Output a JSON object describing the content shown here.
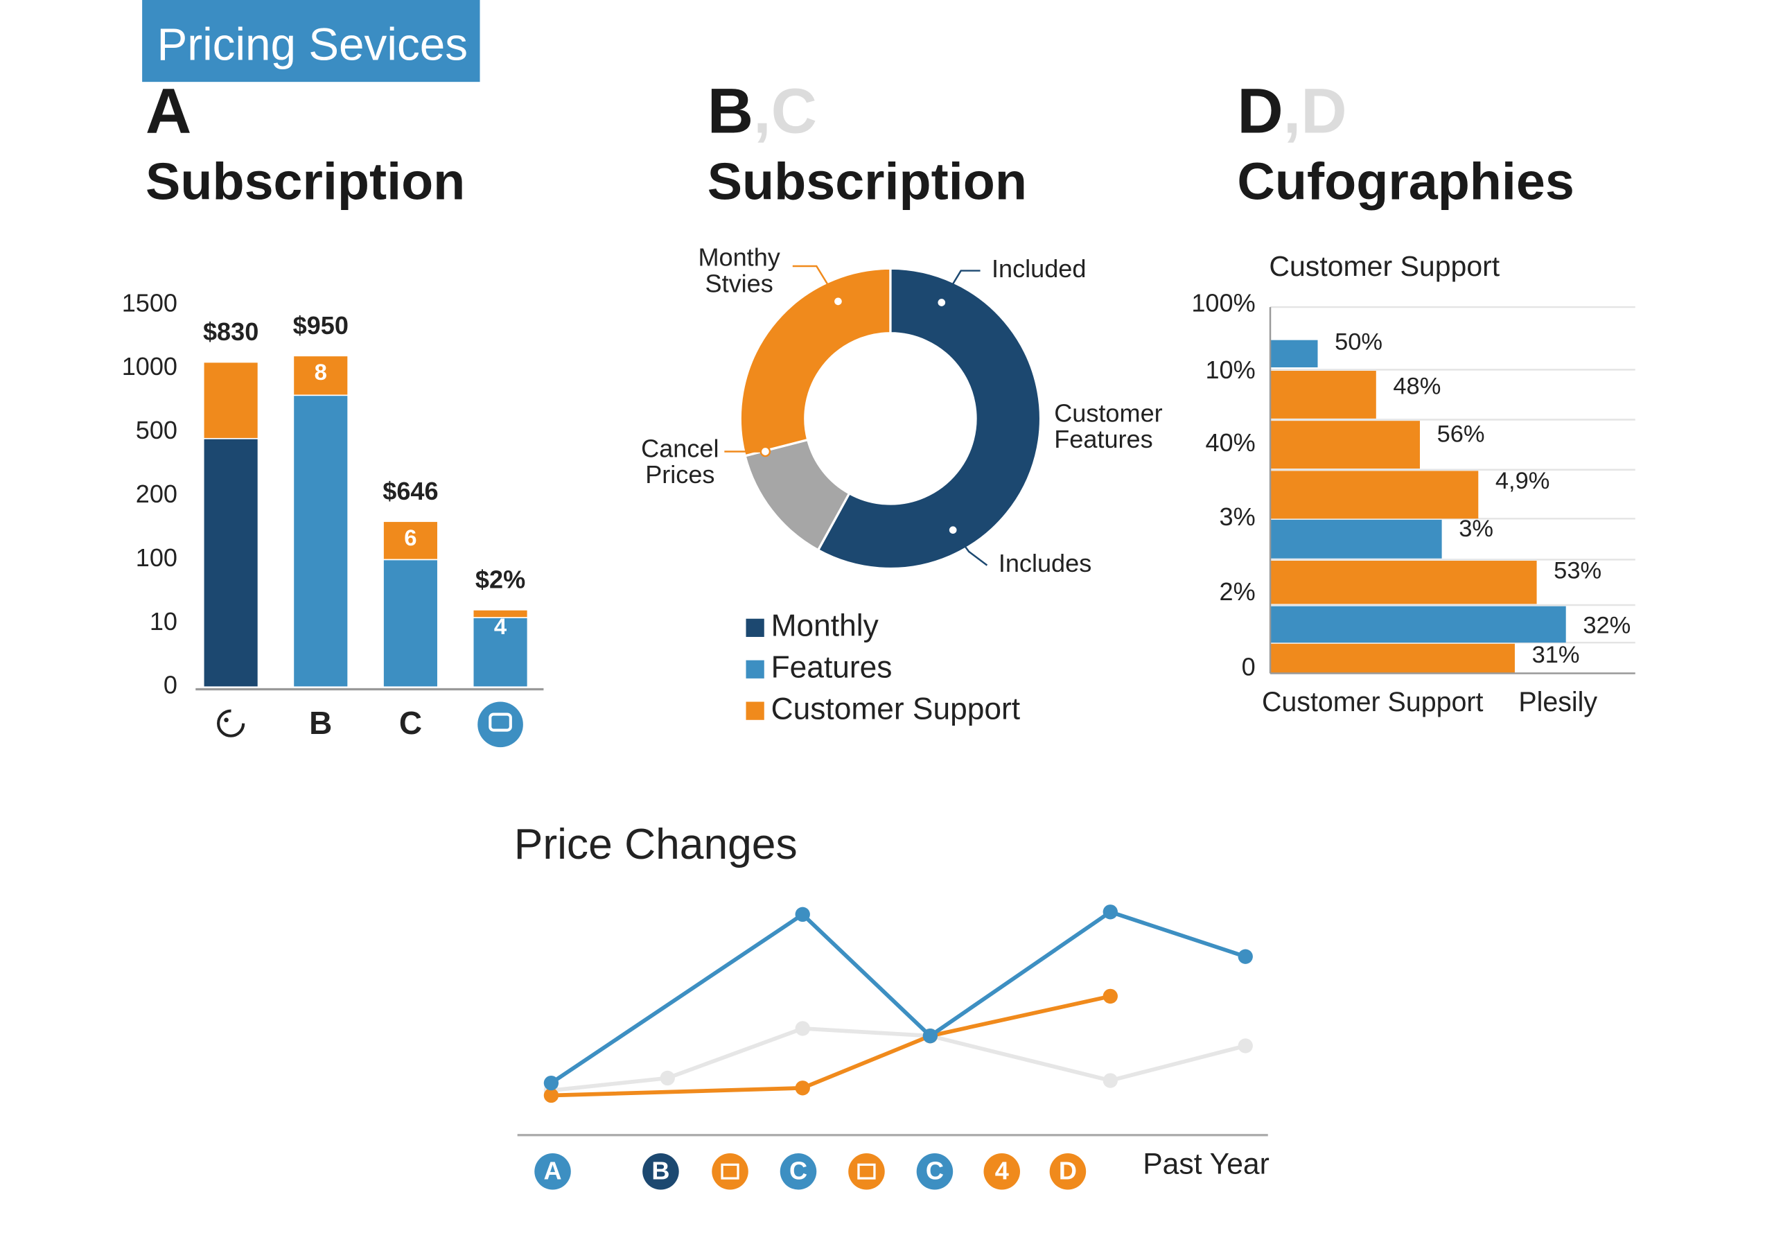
{
  "header": "Pricing Sevices",
  "chart_data": [
    {
      "type": "bar",
      "letter": "A",
      "title": "Subscription",
      "categories": [
        null,
        "B",
        "C",
        null
      ],
      "series": [
        {
          "colors": [
            "#1c4870",
            "#3d8fc2",
            "#3d8fc2",
            "#3d8fc2"
          ],
          "values": [
            470,
            790,
            100,
            18
          ]
        },
        {
          "color": "#f08a1c",
          "values": [
            580,
            310,
            60,
            11
          ]
        }
      ],
      "bar_labels": [
        "$830",
        "$950",
        "$646",
        "$2%"
      ],
      "segment_labels": [
        null,
        "8",
        "6",
        "4"
      ],
      "ylim": [
        0,
        1500
      ],
      "yticks": [
        0,
        10,
        100,
        200,
        500,
        1000,
        1500
      ]
    },
    {
      "type": "donut",
      "letter": "B",
      "letter_ghost": ",C",
      "title": "Subscription",
      "values": [
        58,
        13,
        29
      ],
      "colors": [
        "#1c4870",
        "#a6a6a6",
        "#f08a1c"
      ],
      "annotations": [
        {
          "lines": [
            "Monthy",
            "Stvies"
          ]
        },
        {
          "lines": [
            "Included"
          ]
        },
        {
          "lines": [
            "Customer",
            "Features"
          ]
        },
        {
          "lines": [
            "Includes"
          ]
        },
        {
          "lines": [
            "Cancel",
            "Prices"
          ]
        }
      ],
      "legend": [
        {
          "name": "Monthly",
          "color": "#1c4870"
        },
        {
          "name": "Features",
          "color": "#3d8fc2"
        },
        {
          "name": "Customer Support",
          "color": "#f08a1c"
        }
      ]
    },
    {
      "type": "hbar",
      "letter": "D",
      "letter_ghost": ",D",
      "title": "Cufographies",
      "subtitle": "Customer Support",
      "values": [
        13,
        29,
        41,
        57,
        47,
        73,
        81,
        67
      ],
      "colors": [
        "#3d8fc2",
        "#f08a1c",
        "#f08a1c",
        "#f08a1c",
        "#3d8fc2",
        "#f08a1c",
        "#3d8fc2",
        "#f08a1c"
      ],
      "bar_labels": [
        "50%",
        "48%",
        "56%",
        "4,9%",
        "3%",
        "53%",
        "32%",
        "31%"
      ],
      "y_labels": [
        "100%",
        "10%",
        "40%",
        "3%",
        "2%",
        "0"
      ],
      "x_labels": [
        "Customer Support",
        "Plesily"
      ],
      "xlim": [
        0,
        100
      ]
    },
    {
      "type": "line",
      "title": "Price Changes",
      "xlim": [
        0,
        100
      ],
      "ylim": [
        0,
        100
      ],
      "series": [
        {
          "color": "#e6e6e6",
          "x": [
            4.5,
            20,
            38,
            55,
            79,
            97
          ],
          "values": [
            18,
            23,
            43,
            40,
            22,
            36
          ]
        },
        {
          "color": "#f08a1c",
          "x": [
            4.5,
            38,
            55,
            79
          ],
          "values": [
            16,
            19,
            40,
            56
          ]
        },
        {
          "color": "#3d8fc2",
          "x": [
            4.5,
            38,
            55,
            79,
            97
          ],
          "values": [
            21,
            89,
            40,
            90,
            72
          ]
        }
      ],
      "x_label": "Past Year",
      "badges": [
        {
          "label": "A",
          "color": "#3d8fc2"
        },
        {
          "label": "B",
          "color": "#1c4870"
        },
        {
          "label": null,
          "color": "#f08a1c"
        },
        {
          "label": "C",
          "color": "#3d8fc2"
        },
        {
          "label": null,
          "color": "#f08a1c"
        },
        {
          "label": "C",
          "color": "#3d8fc2"
        },
        {
          "label": "4",
          "color": "#f08a1c"
        },
        {
          "label": "D",
          "color": "#f08a1c"
        }
      ]
    }
  ]
}
